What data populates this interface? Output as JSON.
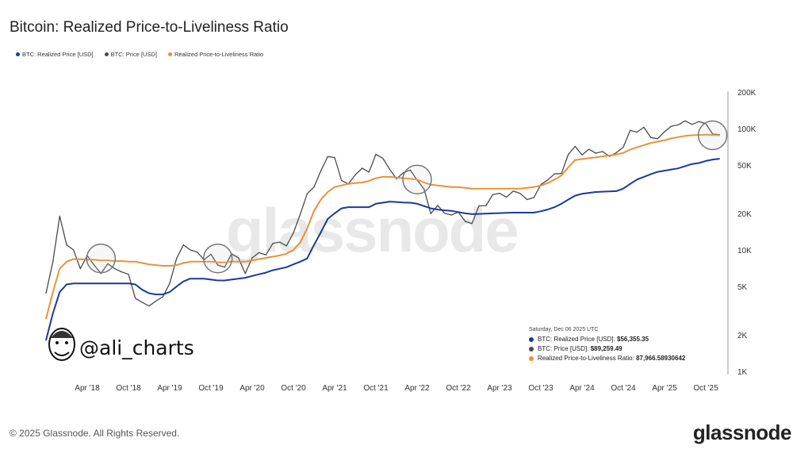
{
  "title": "Bitcoin: Realized Price-to-Liveliness Ratio",
  "legend": [
    {
      "label": "BTC: Realized Price [USD]",
      "color": "#1a3a9c"
    },
    {
      "label": "BTC: Price [USD]",
      "color": "#4a4a4a"
    },
    {
      "label": "Realized Price-to-Liveliness Ratio",
      "color": "#e8913a"
    }
  ],
  "tooltip": {
    "date": "Saturday, Dec 06 2025 UTC",
    "rows": [
      {
        "label": "BTC: Realized Price [USD]: ",
        "value": "$56,355.35"
      },
      {
        "label": "BTC: Price [USD]: ",
        "value": "$89,259.49"
      },
      {
        "label": "Realized Price-to-Liveliness Ratio: ",
        "value": "87,966.58930642"
      }
    ]
  },
  "watermark": "glassnode",
  "author_logo": "@ali_charts",
  "footer": "© 2025 Glassnode. All Rights Reserved.",
  "brand": "glassnode",
  "chart_data": {
    "type": "line",
    "title": "Bitcoin: Realized Price-to-Liveliness Ratio",
    "y_scale": "log",
    "ylim": [
      1000,
      200000
    ],
    "y_ticks": [
      {
        "value": 1000,
        "label": "1K"
      },
      {
        "value": 2000,
        "label": "2K"
      },
      {
        "value": 5000,
        "label": "5K"
      },
      {
        "value": 10000,
        "label": "10K"
      },
      {
        "value": 20000,
        "label": "20K"
      },
      {
        "value": 50000,
        "label": "50K"
      },
      {
        "value": 100000,
        "label": "100K"
      },
      {
        "value": 200000,
        "label": "200K"
      }
    ],
    "y_axis_position": "right",
    "grid": false,
    "legend_position": "top-left",
    "x_ticks": [
      {
        "date": "2018-04",
        "label": "Apr '18"
      },
      {
        "date": "2018-10",
        "label": "Oct '18"
      },
      {
        "date": "2019-04",
        "label": "Apr '19"
      },
      {
        "date": "2019-10",
        "label": "Oct '19"
      },
      {
        "date": "2020-04",
        "label": "Apr '20"
      },
      {
        "date": "2020-10",
        "label": "Oct '20"
      },
      {
        "date": "2021-04",
        "label": "Apr '21"
      },
      {
        "date": "2021-10",
        "label": "Oct '21"
      },
      {
        "date": "2022-04",
        "label": "Apr '22"
      },
      {
        "date": "2022-10",
        "label": "Oct '22"
      },
      {
        "date": "2023-04",
        "label": "Apr '23"
      },
      {
        "date": "2023-10",
        "label": "Oct '23"
      },
      {
        "date": "2024-04",
        "label": "Apr '24"
      },
      {
        "date": "2024-10",
        "label": "Oct '24"
      },
      {
        "date": "2025-04",
        "label": "Apr '25"
      },
      {
        "date": "2025-10",
        "label": "Oct '25"
      }
    ],
    "x_start": "2017-10",
    "series": [
      {
        "name": "BTC: Price [USD]",
        "color": "#4a4a4a",
        "values": [
          4400,
          8000,
          19000,
          11000,
          10000,
          7000,
          9000,
          7500,
          6400,
          7700,
          7000,
          6600,
          6300,
          4000,
          3700,
          3450,
          3800,
          4100,
          5300,
          8500,
          11000,
          10000,
          9600,
          8300,
          9200,
          7500,
          7200,
          9300,
          8600,
          6400,
          8600,
          9500,
          9100,
          11300,
          11600,
          10800,
          13800,
          19700,
          29000,
          33000,
          45000,
          58800,
          57700,
          37300,
          35000,
          41500,
          47100,
          43800,
          61300,
          57000,
          46300,
          38500,
          43200,
          45500,
          37700,
          31800,
          19900,
          23300,
          20000,
          19400,
          20500,
          17200,
          16500,
          23100,
          23100,
          28500,
          29300,
          27200,
          30500,
          29200,
          26000,
          27000,
          34500,
          37700,
          42300,
          42600,
          61200,
          71300,
          60600,
          67500,
          62700,
          64600,
          59000,
          63300,
          70200,
          96400,
          93400,
          102400,
          84300,
          82500,
          94200,
          104600,
          107100,
          115700,
          108200,
          114000,
          110000,
          90000,
          89259
        ]
      },
      {
        "name": "BTC: Realized Price [USD]",
        "color": "#1a3a9c",
        "values": [
          1800,
          3000,
          4500,
          5200,
          5300,
          5300,
          5300,
          5300,
          5300,
          5300,
          5300,
          5300,
          5300,
          5200,
          4700,
          4400,
          4300,
          4300,
          4500,
          5000,
          5500,
          5800,
          5800,
          5800,
          5700,
          5600,
          5600,
          5700,
          5800,
          5900,
          6100,
          6300,
          6500,
          6800,
          7000,
          7200,
          7600,
          8000,
          8500,
          11000,
          14000,
          18000,
          20000,
          22000,
          22500,
          22500,
          22500,
          22500,
          24000,
          24500,
          25000,
          24800,
          24600,
          24500,
          24000,
          23000,
          22000,
          21500,
          21200,
          21000,
          20500,
          20000,
          19700,
          19800,
          19900,
          20000,
          20100,
          20200,
          20300,
          20300,
          20300,
          20300,
          20800,
          21500,
          22500,
          24000,
          26000,
          28000,
          29000,
          29500,
          30000,
          30200,
          30300,
          30500,
          32000,
          35000,
          38000,
          40000,
          42000,
          44000,
          45000,
          46000,
          47000,
          49000,
          51000,
          52000,
          54000,
          55500,
          56355
        ]
      },
      {
        "name": "Realized Price-to-Liveliness Ratio",
        "color": "#e8913a",
        "values": [
          2700,
          4500,
          7000,
          8000,
          8400,
          8400,
          8300,
          8300,
          8200,
          8200,
          8100,
          8100,
          8000,
          8000,
          7800,
          7600,
          7500,
          7400,
          7400,
          7500,
          7800,
          8000,
          8000,
          8000,
          8000,
          7900,
          7900,
          8000,
          8000,
          8000,
          8200,
          8400,
          8600,
          8800,
          9000,
          9300,
          10000,
          11500,
          15000,
          21000,
          26000,
          30000,
          33000,
          34000,
          35000,
          35500,
          36000,
          37000,
          39000,
          40000,
          40000,
          39500,
          39000,
          38500,
          38000,
          36000,
          34500,
          34000,
          33500,
          33000,
          33000,
          32500,
          32000,
          32000,
          32000,
          32000,
          32000,
          32000,
          32000,
          32000,
          32500,
          33000,
          34000,
          35500,
          38000,
          41000,
          48000,
          55000,
          56000,
          57000,
          58000,
          59000,
          60000,
          61000,
          63000,
          67000,
          70000,
          73000,
          76000,
          78000,
          80000,
          83000,
          85000,
          87000,
          88000,
          88500,
          89000,
          88500,
          87967
        ]
      }
    ],
    "highlights": [
      {
        "date": "2018-06",
        "value": 8500
      },
      {
        "date": "2019-11",
        "value": 8500
      },
      {
        "date": "2022-04",
        "value": 38000
      },
      {
        "date": "2025-11",
        "value": 88000
      }
    ]
  }
}
